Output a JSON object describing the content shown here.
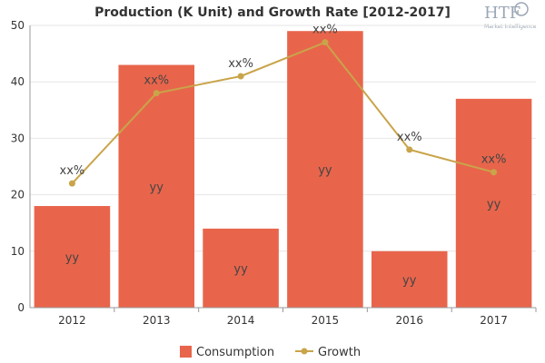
{
  "chart_data": {
    "type": "bar",
    "title": "Production (K Unit) and Growth Rate [2012-2017]",
    "categories": [
      "2012",
      "2013",
      "2014",
      "2015",
      "2016",
      "2017"
    ],
    "ylim": [
      0,
      50
    ],
    "yticks": [
      0,
      10,
      20,
      30,
      40,
      50
    ],
    "grid": true,
    "legend_position": "bottom",
    "series": [
      {
        "name": "Consumption",
        "type": "bar",
        "color": "#e8654b",
        "values": [
          18,
          43,
          14,
          49,
          10,
          37
        ],
        "labels": [
          "yy",
          "yy",
          "yy",
          "yy",
          "yy",
          "yy"
        ]
      },
      {
        "name": "Growth",
        "type": "line",
        "color": "#c9a44a",
        "values": [
          22,
          38,
          41,
          47,
          28,
          24
        ],
        "labels": [
          "xx%",
          "xx%",
          "xx%",
          "xx%",
          "xx%",
          "xx%"
        ]
      }
    ]
  },
  "logo": {
    "text": "HTF",
    "subtext": "Market Intelligence"
  },
  "colors": {
    "bar": "#e8654b",
    "line": "#c9a44a",
    "grid": "#e6e6e6",
    "axis": "#999999"
  }
}
